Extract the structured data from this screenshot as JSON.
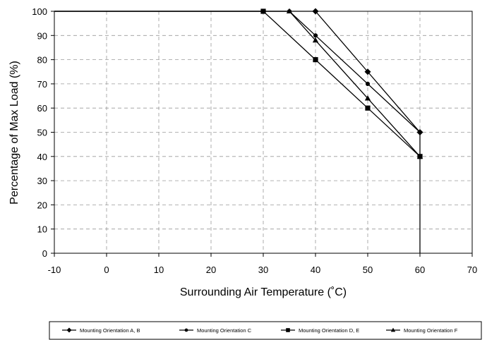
{
  "chart_data": {
    "type": "line",
    "title": "",
    "xlabel": "Surrounding Air Temperature (˚C)",
    "ylabel": "Percentage of Max Load (%)",
    "xlim": [
      -10,
      70
    ],
    "ylim": [
      0,
      100
    ],
    "xticks": [
      -10,
      0,
      10,
      20,
      30,
      40,
      50,
      60,
      70
    ],
    "yticks": [
      0,
      10,
      20,
      30,
      40,
      50,
      60,
      70,
      80,
      90,
      100
    ],
    "grid": true,
    "legend_position": "bottom",
    "series": [
      {
        "name": "Mounting Orientation A, B",
        "marker": "diamond",
        "x": [
          -10,
          40,
          50,
          60,
          60
        ],
        "y": [
          100,
          100,
          75,
          50,
          0
        ],
        "marker_x": [
          40,
          50,
          60
        ],
        "marker_y": [
          100,
          75,
          50
        ]
      },
      {
        "name": "Mounting Orientation C",
        "marker": "circle",
        "x": [
          -10,
          35,
          40,
          50,
          60
        ],
        "y": [
          100,
          100,
          90,
          70,
          50
        ],
        "marker_x": [
          35,
          40,
          50,
          60
        ],
        "marker_y": [
          100,
          90,
          70,
          50
        ]
      },
      {
        "name": "Mounting Orientation D, E",
        "marker": "square",
        "x": [
          -10,
          30,
          40,
          50,
          60
        ],
        "y": [
          100,
          100,
          80,
          60,
          40
        ],
        "marker_x": [
          30,
          40,
          50,
          60
        ],
        "marker_y": [
          100,
          80,
          60,
          40
        ]
      },
      {
        "name": "Mounting Orientation F",
        "marker": "triangle",
        "x": [
          -10,
          35,
          40,
          50,
          60
        ],
        "y": [
          100,
          100,
          88,
          64,
          40
        ],
        "marker_x": [
          35,
          40,
          50,
          60
        ],
        "marker_y": [
          100,
          88,
          64,
          40
        ]
      }
    ]
  }
}
